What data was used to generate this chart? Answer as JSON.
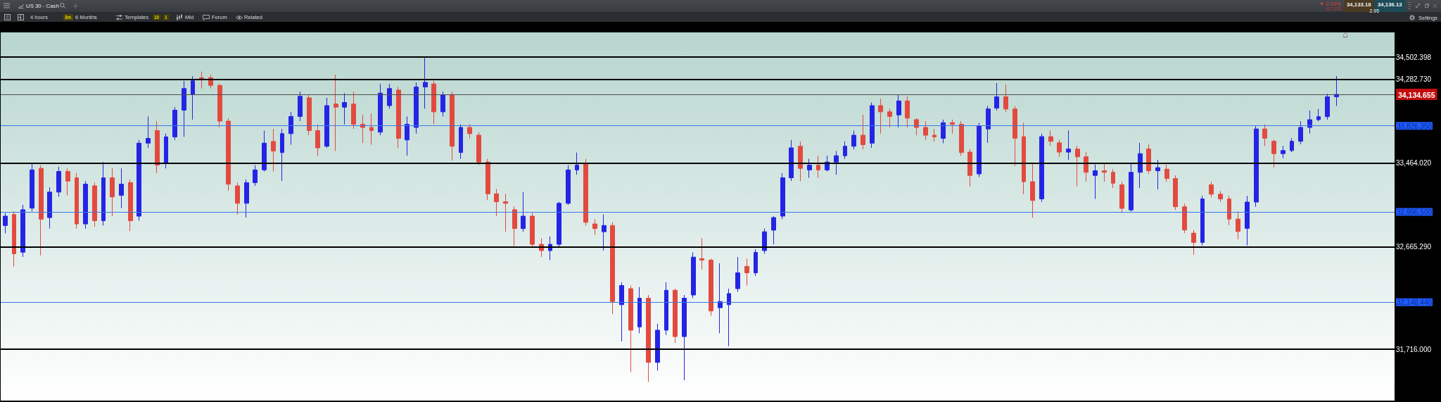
{
  "chart_data": {
    "type": "candlestick",
    "title": "US 30 - Cash",
    "annotations": [
      "4 hours",
      "3m",
      "6 Months",
      "Templates",
      "10",
      "1",
      "Mid",
      "Forum",
      "Related",
      "Settings",
      "▼ 0.24%",
      "82.205",
      "34,133.18",
      "2.95",
      "34,136.13"
    ],
    "categories": [
      null,
      null,
      null,
      null,
      null,
      null,
      null,
      null,
      null,
      null,
      null,
      null,
      null,
      null,
      null,
      null,
      null,
      null,
      null,
      null,
      null,
      null,
      null,
      null,
      null,
      null,
      null,
      null,
      null,
      null,
      null,
      null,
      null,
      null,
      null,
      null,
      null,
      null,
      null,
      null,
      null,
      null,
      null,
      null,
      null,
      null,
      null,
      null,
      null,
      null,
      null,
      null,
      null,
      null,
      null,
      null,
      null,
      null,
      null,
      null,
      null,
      null,
      null,
      null,
      null,
      null,
      null,
      null,
      null,
      null,
      null,
      null,
      null,
      null,
      null,
      null,
      null,
      null,
      null,
      null,
      null,
      null,
      null,
      null,
      null,
      null,
      null,
      null,
      null,
      null,
      null,
      null,
      null,
      null,
      null,
      null,
      null,
      null,
      null,
      null,
      null,
      null,
      null,
      null,
      null,
      null,
      null,
      null,
      null,
      null,
      null,
      null,
      null,
      null,
      null,
      null,
      null,
      null,
      null,
      null,
      null,
      null,
      null,
      null,
      null,
      null,
      null,
      null,
      null,
      null,
      null,
      null,
      null,
      null,
      null,
      null,
      null,
      null,
      null,
      null,
      null,
      null,
      null,
      null,
      null,
      null,
      null,
      null,
      null,
      null,
      null,
      null,
      null,
      null,
      null,
      null
    ],
    "ohlc": [
      [
        32868,
        32987,
        32794,
        32957
      ],
      [
        32972,
        33002,
        32482,
        32601
      ],
      [
        32616,
        33064,
        32572,
        33018
      ],
      [
        33033,
        33460,
        33002,
        33399
      ],
      [
        33414,
        33445,
        32586,
        32928
      ],
      [
        32943,
        33231,
        32839,
        33186
      ],
      [
        33186,
        33429,
        33140,
        33384
      ],
      [
        33384,
        33414,
        33155,
        33292
      ],
      [
        33323,
        33369,
        32839,
        32883
      ],
      [
        32883,
        33292,
        32839,
        33262
      ],
      [
        33246,
        33277,
        32854,
        32913
      ],
      [
        32913,
        33475,
        32868,
        33323
      ],
      [
        33323,
        33414,
        32957,
        33140
      ],
      [
        33155,
        33414,
        33033,
        33262
      ],
      [
        33277,
        33307,
        32815,
        32913
      ],
      [
        32957,
        33689,
        32913,
        33658
      ],
      [
        33658,
        33918,
        33612,
        33704
      ],
      [
        33780,
        33872,
        33369,
        33445
      ],
      [
        33460,
        33750,
        33414,
        33719
      ],
      [
        33719,
        34009,
        33689,
        33979
      ],
      [
        33979,
        34268,
        33719,
        34192
      ],
      [
        34131,
        34314,
        33887,
        34268
      ],
      [
        34299,
        34360,
        34192,
        34284
      ],
      [
        34299,
        34329,
        34192,
        34223
      ],
      [
        34223,
        34238,
        33811,
        33872
      ],
      [
        33872,
        33902,
        33201,
        33262
      ],
      [
        33246,
        33277,
        32972,
        33079
      ],
      [
        33079,
        33307,
        32943,
        33277
      ],
      [
        33277,
        33445,
        33246,
        33399
      ],
      [
        33399,
        33780,
        33384,
        33658
      ],
      [
        33674,
        33796,
        33384,
        33582
      ],
      [
        33567,
        33796,
        33292,
        33750
      ],
      [
        33750,
        33963,
        33643,
        33918
      ],
      [
        33918,
        34162,
        33872,
        34116
      ],
      [
        34101,
        34131,
        33735,
        33780
      ],
      [
        33780,
        33841,
        33536,
        33612
      ],
      [
        33628,
        34101,
        33612,
        34024
      ],
      [
        34040,
        34329,
        33582,
        34009
      ],
      [
        34009,
        34147,
        33841,
        34055
      ],
      [
        34040,
        34162,
        33796,
        33841
      ],
      [
        33841,
        33933,
        33658,
        33811
      ],
      [
        33811,
        33948,
        33643,
        33780
      ],
      [
        33765,
        34238,
        33735,
        34147
      ],
      [
        34024,
        34238,
        33994,
        34192
      ],
      [
        34177,
        34207,
        33612,
        33704
      ],
      [
        33689,
        33918,
        33536,
        33841
      ],
      [
        33811,
        34253,
        33750,
        34207
      ],
      [
        34207,
        34494,
        33994,
        34253
      ],
      [
        34238,
        34268,
        33841,
        33963
      ],
      [
        33963,
        34162,
        33918,
        34131
      ],
      [
        34131,
        34162,
        33491,
        33628
      ],
      [
        33567,
        33841,
        33506,
        33811
      ],
      [
        33811,
        33841,
        33704,
        33750
      ],
      [
        33735,
        33765,
        33445,
        33475
      ],
      [
        33475,
        33506,
        33109,
        33170
      ],
      [
        33170,
        33216,
        32957,
        33094
      ],
      [
        33094,
        33170,
        32809,
        33079
      ],
      [
        33018,
        33048,
        32675,
        32839
      ],
      [
        32839,
        33186,
        32809,
        32957
      ],
      [
        32957,
        32987,
        32660,
        32690
      ],
      [
        32690,
        32749,
        32572,
        32631
      ],
      [
        32631,
        32765,
        32542,
        32690
      ],
      [
        32690,
        33094,
        32660,
        33079
      ],
      [
        33079,
        33445,
        33064,
        33399
      ],
      [
        33399,
        33567,
        33353,
        33445
      ],
      [
        33460,
        33506,
        32868,
        32898
      ],
      [
        32883,
        32928,
        32779,
        32839
      ],
      [
        32809,
        32972,
        32631,
        32868
      ],
      [
        32868,
        32898,
        32039,
        32156
      ],
      [
        32126,
        32334,
        31788,
        32304
      ],
      [
        32275,
        32304,
        31507,
        31891
      ],
      [
        31921,
        32290,
        31862,
        32186
      ],
      [
        32186,
        32216,
        31419,
        31596
      ],
      [
        31596,
        31950,
        31522,
        31891
      ],
      [
        31891,
        32334,
        31847,
        32260
      ],
      [
        32260,
        32275,
        31773,
        31832
      ],
      [
        31832,
        32216,
        31434,
        32186
      ],
      [
        32216,
        32615,
        32186,
        32570
      ],
      [
        32556,
        32749,
        32453,
        32542
      ],
      [
        32542,
        32556,
        32024,
        32068
      ],
      [
        32098,
        32512,
        31862,
        32156
      ],
      [
        32126,
        32275,
        31744,
        32230
      ],
      [
        32275,
        32571,
        32245,
        32423
      ],
      [
        32483,
        32556,
        32304,
        32423
      ],
      [
        32423,
        32645,
        32393,
        32615
      ],
      [
        32631,
        32839,
        32601,
        32809
      ],
      [
        32824,
        32957,
        32690,
        32943
      ],
      [
        32957,
        33369,
        32928,
        33323
      ],
      [
        33323,
        33689,
        33292,
        33612
      ],
      [
        33628,
        33674,
        33292,
        33414
      ],
      [
        33399,
        33506,
        33323,
        33445
      ],
      [
        33445,
        33536,
        33323,
        33399
      ],
      [
        33399,
        33536,
        33384,
        33475
      ],
      [
        33475,
        33582,
        33353,
        33536
      ],
      [
        33536,
        33674,
        33506,
        33628
      ],
      [
        33628,
        33780,
        33597,
        33735
      ],
      [
        33735,
        33933,
        33597,
        33643
      ],
      [
        33658,
        34055,
        33612,
        34024
      ],
      [
        34024,
        34091,
        33750,
        33963
      ],
      [
        33963,
        33994,
        33811,
        33918
      ],
      [
        33933,
        34131,
        33811,
        34070
      ],
      [
        34070,
        34116,
        33811,
        33902
      ],
      [
        33887,
        33902,
        33735,
        33811
      ],
      [
        33811,
        33872,
        33689,
        33735
      ],
      [
        33735,
        33796,
        33674,
        33719
      ],
      [
        33704,
        33887,
        33658,
        33857
      ],
      [
        33857,
        33887,
        33750,
        33841
      ],
      [
        33841,
        33872,
        33536,
        33567
      ],
      [
        33571,
        33601,
        33241,
        33346
      ],
      [
        33361,
        33856,
        33331,
        33826
      ],
      [
        33796,
        34021,
        33661,
        33991
      ],
      [
        34000,
        34246,
        33976,
        34111
      ],
      [
        34111,
        34231,
        33961,
        33991
      ],
      [
        33991,
        34021,
        33436,
        33706
      ],
      [
        33721,
        33856,
        33166,
        33286
      ],
      [
        33286,
        33466,
        32943,
        33106
      ],
      [
        33121,
        33751,
        33091,
        33721
      ],
      [
        33721,
        33781,
        33631,
        33676
      ],
      [
        33661,
        33691,
        33526,
        33571
      ],
      [
        33571,
        33781,
        33496,
        33601
      ],
      [
        33601,
        33631,
        33241,
        33526
      ],
      [
        33526,
        33571,
        33286,
        33376
      ],
      [
        33346,
        33451,
        33121,
        33391
      ],
      [
        33391,
        33466,
        33286,
        33376
      ],
      [
        33376,
        33406,
        33226,
        33271
      ],
      [
        33256,
        33286,
        32987,
        33031
      ],
      [
        33016,
        33466,
        33001,
        33376
      ],
      [
        33376,
        33661,
        33226,
        33556
      ],
      [
        33601,
        33646,
        33361,
        33391
      ],
      [
        33391,
        33496,
        33211,
        33421
      ],
      [
        33406,
        33451,
        33286,
        33316
      ],
      [
        33316,
        33346,
        33016,
        33046
      ],
      [
        33046,
        33076,
        32796,
        32826
      ],
      [
        32796,
        32826,
        32592,
        32708
      ],
      [
        32708,
        33151,
        32679,
        33121
      ],
      [
        33256,
        33286,
        33136,
        33166
      ],
      [
        33166,
        33196,
        33091,
        33121
      ],
      [
        33121,
        33151,
        32870,
        32929
      ],
      [
        32929,
        33001,
        32738,
        32811
      ],
      [
        32841,
        33151,
        32680,
        33091
      ],
      [
        33091,
        33826,
        33046,
        33796
      ],
      [
        33796,
        33841,
        33631,
        33706
      ],
      [
        33676,
        33691,
        33421,
        33556
      ],
      [
        33556,
        33631,
        33511,
        33586
      ],
      [
        33586,
        33706,
        33571,
        33676
      ],
      [
        33676,
        33871,
        33646,
        33811
      ],
      [
        33811,
        33976,
        33751,
        33886
      ],
      [
        33886,
        33991,
        33871,
        33916
      ],
      [
        33916,
        34141,
        33886,
        34111
      ],
      [
        34111,
        34315,
        34021,
        34135
      ],
      null,
      null,
      null,
      null,
      null,
      null
    ],
    "colors": [
      "#2424e6",
      "#e34a3f",
      "#2424e6",
      "#2424e6",
      "#e34a3f",
      "#2424e6",
      "#2424e6",
      "#e34a3f",
      "#e34a3f",
      "#2424e6",
      "#e34a3f",
      "#2424e6",
      "#e34a3f",
      "#2424e6",
      "#e34a3f",
      "#2424e6",
      "#2424e6",
      "#e34a3f",
      "#2424e6",
      "#2424e6",
      "#2424e6",
      "#2424e6",
      "#e34a3f",
      "#e34a3f",
      "#e34a3f",
      "#e34a3f",
      "#e34a3f",
      "#2424e6",
      "#2424e6",
      "#2424e6",
      "#e34a3f",
      "#2424e6",
      "#2424e6",
      "#2424e6",
      "#e34a3f",
      "#e34a3f",
      "#2424e6",
      "#e34a3f",
      "#2424e6",
      "#e34a3f",
      "#e34a3f",
      "#e34a3f",
      "#2424e6",
      "#2424e6",
      "#e34a3f",
      "#2424e6",
      "#2424e6",
      "#2424e6",
      "#e34a3f",
      "#2424e6",
      "#e34a3f",
      "#2424e6",
      "#e34a3f",
      "#e34a3f",
      "#e34a3f",
      "#e34a3f",
      "#e34a3f",
      "#e34a3f",
      "#2424e6",
      "#e34a3f",
      "#e34a3f",
      "#2424e6",
      "#2424e6",
      "#2424e6",
      "#2424e6",
      "#e34a3f",
      "#e34a3f",
      "#2424e6",
      "#e34a3f",
      "#2424e6",
      "#e34a3f",
      "#2424e6",
      "#e34a3f",
      "#2424e6",
      "#2424e6",
      "#e34a3f",
      "#2424e6",
      "#2424e6",
      "#e34a3f",
      "#e34a3f",
      "#2424e6",
      "#2424e6",
      "#2424e6",
      "#e34a3f",
      "#2424e6",
      "#2424e6",
      "#2424e6",
      "#2424e6",
      "#2424e6",
      "#e34a3f",
      "#2424e6",
      "#e34a3f",
      "#2424e6",
      "#2424e6",
      "#2424e6",
      "#2424e6",
      "#e34a3f",
      "#2424e6",
      "#e34a3f",
      "#e34a3f",
      "#2424e6",
      "#e34a3f",
      "#e34a3f",
      "#e34a3f",
      "#e34a3f",
      "#2424e6",
      "#e34a3f",
      "#e34a3f",
      "#e34a3f",
      "#2424e6",
      "#2424e6",
      "#2424e6",
      "#e34a3f",
      "#e34a3f",
      "#e34a3f",
      "#e34a3f",
      "#2424e6",
      "#e34a3f",
      "#e34a3f",
      "#2424e6",
      "#e34a3f",
      "#e34a3f",
      "#2424e6",
      "#e34a3f",
      "#e34a3f",
      "#e34a3f",
      "#2424e6",
      "#2424e6",
      "#e34a3f",
      "#2424e6",
      "#e34a3f",
      "#e34a3f",
      "#e34a3f",
      "#e34a3f",
      "#2424e6",
      "#e34a3f",
      "#e34a3f",
      "#e34a3f",
      "#e34a3f",
      "#2424e6",
      "#2424e6",
      "#e34a3f",
      "#e34a3f",
      "#2424e6",
      "#2424e6",
      "#2424e6",
      "#2424e6",
      "#2424e6",
      "#2424e6",
      "#2424e6",
      null,
      null,
      null,
      null,
      null,
      null
    ],
    "ylim": [
      31250,
      34750
    ],
    "log": true,
    "tick_labels": "y",
    "yticks": [
      {
        "value": 34502.398,
        "label": "34,502.398"
      },
      {
        "value": 34282.73,
        "label": "34,282.730"
      },
      {
        "value": 34134.655,
        "label": "34,134.655"
      },
      {
        "value": 33826.35,
        "label": "33,826.350"
      },
      {
        "value": 33464.02,
        "label": "33,464.020"
      },
      {
        "value": 32996.5,
        "label": "32,996.500"
      },
      {
        "value": 32665.29,
        "label": "32,665.290"
      },
      {
        "value": 32148.44,
        "label": "32,148.440"
      },
      {
        "value": 31716,
        "label": "31,716.000"
      }
    ],
    "ref_lines": [
      {
        "axis": "y",
        "value": 34502.398,
        "color": "#000000"
      },
      {
        "axis": "y",
        "value": 34282.73,
        "color": "#000000"
      },
      {
        "axis": "y",
        "value": 34134.655,
        "color": "#4d4d4d"
      },
      {
        "axis": "y",
        "value": 33826.35,
        "color": "#3a78e6"
      },
      {
        "axis": "y",
        "value": 33464.02,
        "color": "#000000"
      },
      {
        "axis": "y",
        "value": 32996.5,
        "color": "#3a78e6"
      },
      {
        "axis": "y",
        "value": 32665.29,
        "color": "#000000"
      },
      {
        "axis": "y",
        "value": 32148.44,
        "color": "#3a78e6"
      },
      {
        "axis": "y",
        "value": 31716,
        "color": "#000000"
      }
    ]
  }
}
